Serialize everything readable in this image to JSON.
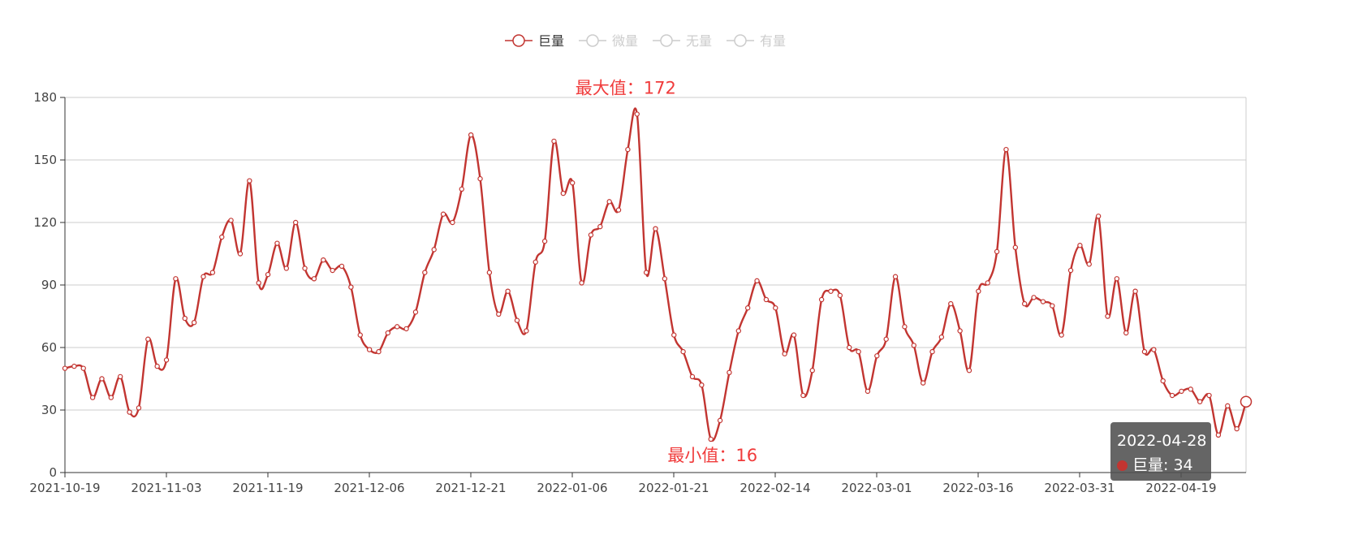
{
  "colors": {
    "series1": "#c23531",
    "inactive": "#cccccc",
    "mark": "#f03b3b",
    "grid": "#cccccc"
  },
  "legend": [
    {
      "name": "巨量",
      "active": true
    },
    {
      "name": "微量",
      "active": false
    },
    {
      "name": "无量",
      "active": false
    },
    {
      "name": "有量",
      "active": false
    }
  ],
  "markers": {
    "max_label": "最大值：172",
    "min_label": "最小值：16"
  },
  "tooltip": {
    "date": "2022-04-28",
    "series_label": "巨量: 34"
  },
  "chart_data": {
    "type": "line",
    "smooth": true,
    "grid": true,
    "legend_position": "top-center",
    "ylim": [
      0,
      180
    ],
    "yticks": [
      0,
      30,
      60,
      90,
      120,
      150,
      180
    ],
    "x_tick_labels": [
      "2021-10-19",
      "2021-11-03",
      "2021-11-19",
      "2021-12-06",
      "2021-12-21",
      "2022-01-06",
      "2022-01-21",
      "2022-02-14",
      "2022-03-01",
      "2022-03-16",
      "2022-03-31",
      "2022-04-19"
    ],
    "series": [
      {
        "name": "巨量",
        "values": [
          50,
          51,
          50,
          36,
          45,
          36,
          46,
          29,
          31,
          64,
          51,
          54,
          93,
          74,
          72,
          94,
          96,
          113,
          121,
          105,
          140,
          91,
          95,
          110,
          98,
          120,
          98,
          93,
          102,
          97,
          99,
          89,
          66,
          59,
          58,
          67,
          70,
          69,
          77,
          96,
          107,
          124,
          120,
          136,
          162,
          141,
          96,
          76,
          87,
          73,
          68,
          101,
          111,
          159,
          134,
          139,
          91,
          114,
          118,
          130,
          126,
          155,
          172,
          96,
          117,
          93,
          66,
          58,
          46,
          42,
          16,
          25,
          48,
          68,
          79,
          92,
          83,
          79,
          57,
          66,
          37,
          49,
          83,
          87,
          85,
          60,
          58,
          39,
          56,
          64,
          94,
          70,
          61,
          43,
          58,
          65,
          81,
          68,
          49,
          87,
          91,
          106,
          155,
          108,
          81,
          84,
          82,
          80,
          66,
          97,
          109,
          100,
          123,
          75,
          93,
          67,
          87,
          58,
          59,
          44,
          37,
          39,
          40,
          34,
          37,
          18,
          32,
          21,
          34
        ]
      }
    ],
    "max_point": {
      "value": 172,
      "index": 62
    },
    "min_point": {
      "value": 16,
      "index": 70
    }
  }
}
